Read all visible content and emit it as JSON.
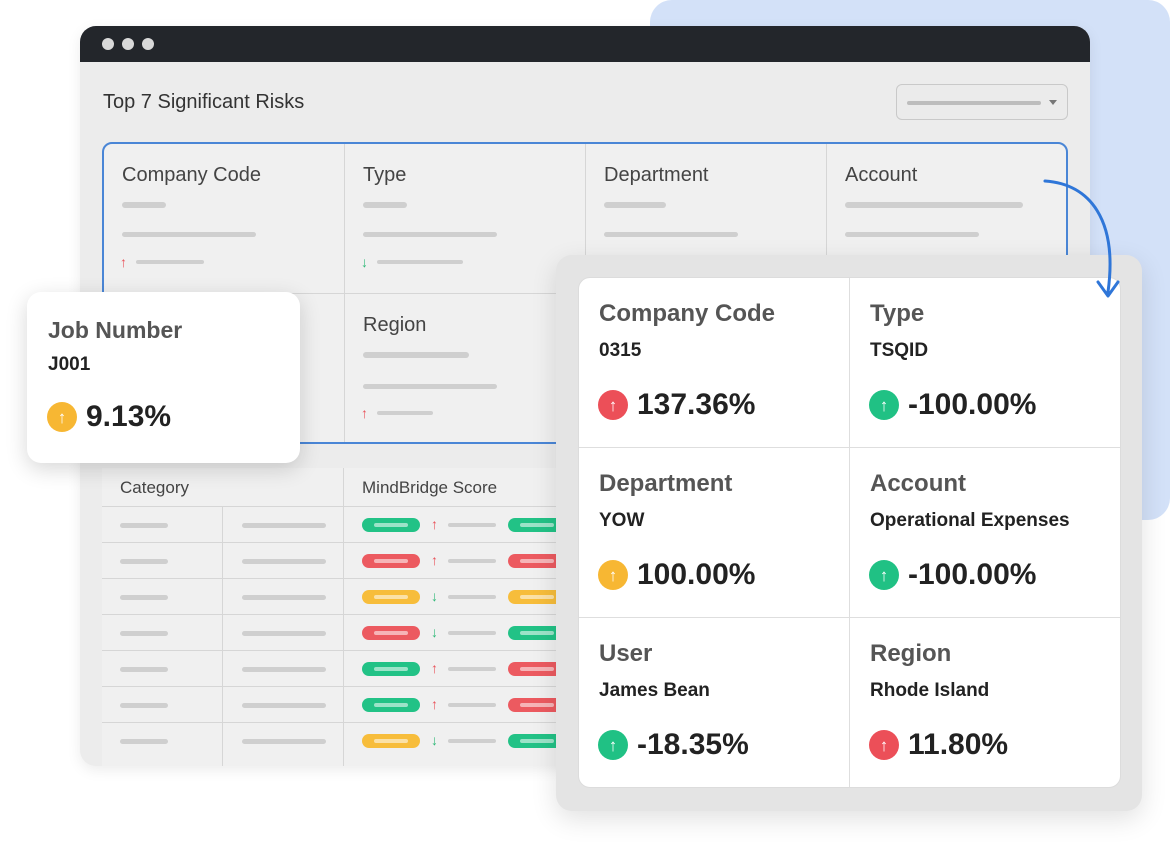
{
  "window": {
    "title": "Top 7 Significant Risks"
  },
  "grid_headers": [
    "Company Code",
    "Type",
    "Department",
    "Account",
    "Region"
  ],
  "table": {
    "headers": [
      "Category",
      "MindBridge Score"
    ],
    "rows": [
      {
        "score": "green",
        "trend": "up",
        "score2": "green"
      },
      {
        "score": "red",
        "trend": "up",
        "score2": "red"
      },
      {
        "score": "yellow",
        "trend": "down",
        "score2": "yellow"
      },
      {
        "score": "red",
        "trend": "down",
        "score2": "green"
      },
      {
        "score": "green",
        "trend": "up",
        "score2": "red"
      },
      {
        "score": "green",
        "trend": "up",
        "score2": "red"
      },
      {
        "score": "yellow",
        "trend": "down",
        "score2": "green"
      }
    ]
  },
  "job_card": {
    "label": "Job Number",
    "value": "J001",
    "percent": "9.13%",
    "status": "yellow",
    "icon": "arrow-up-icon"
  },
  "detail": {
    "cells": [
      {
        "label": "Company Code",
        "value": "0315",
        "percent": "137.36%",
        "status": "red"
      },
      {
        "label": "Type",
        "value": "TSQID",
        "percent": "-100.00%",
        "status": "green"
      },
      {
        "label": "Department",
        "value": "YOW",
        "percent": "100.00%",
        "status": "yellow"
      },
      {
        "label": "Account",
        "value": "Operational Expenses",
        "percent": "-100.00%",
        "status": "green"
      },
      {
        "label": "User",
        "value": "James Bean",
        "percent": "-18.35%",
        "status": "green"
      },
      {
        "label": "Region",
        "value": "Rhode Island",
        "percent": "11.80%",
        "status": "red"
      }
    ]
  },
  "colors": {
    "red": "#ec4f58",
    "green": "#20c184",
    "yellow": "#f7b733",
    "accent_blue": "#4a86d6",
    "background_blob": "#d3e1f8"
  }
}
